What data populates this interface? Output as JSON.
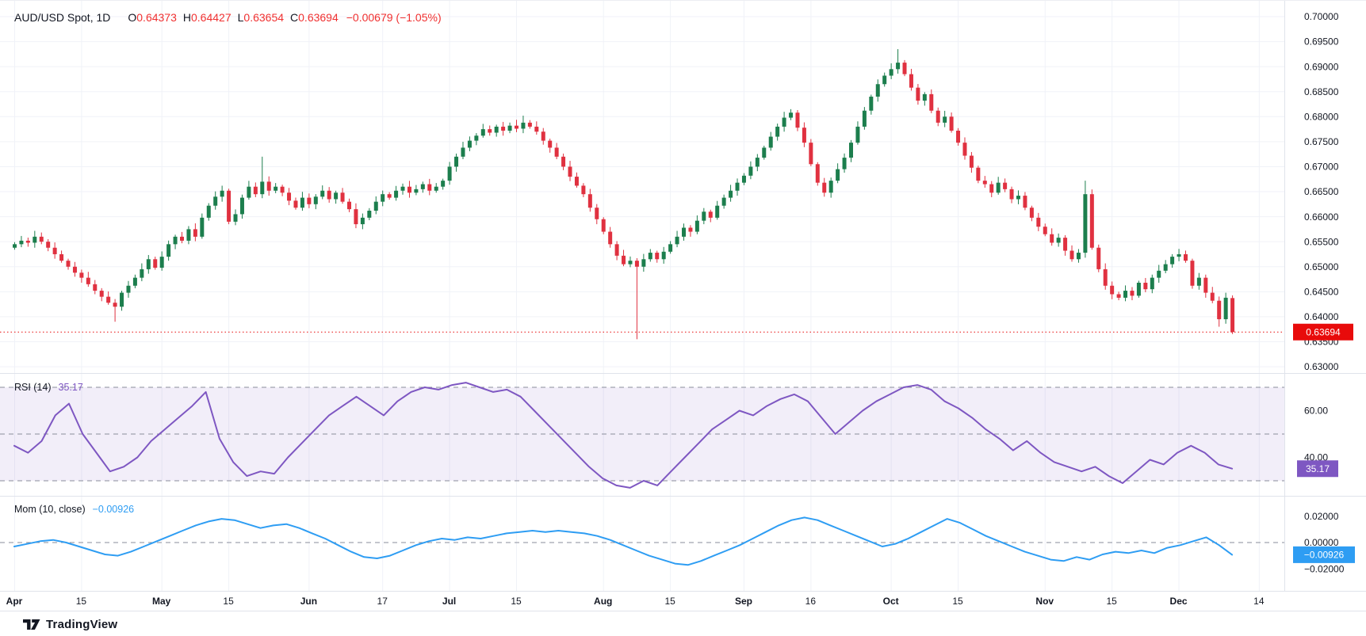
{
  "header": {
    "symbol": "AUD/USD Spot, 1D",
    "ohlc": {
      "o_label": "O",
      "o": "0.64373",
      "h_label": "H",
      "h": "0.64427",
      "l_label": "L",
      "l": "0.63654",
      "c_label": "C",
      "c": "0.63694"
    },
    "change": "−0.00679 (−1.05%)"
  },
  "indicators": {
    "rsi": {
      "label": "RSI (14)",
      "value": "35.17"
    },
    "mom": {
      "label": "Mom (10, close)",
      "value": "−0.00926"
    }
  },
  "footer": {
    "brand": "TradingView"
  },
  "colors": {
    "up": "#1c7e4d",
    "down": "#e03140",
    "last": "#e80b0b",
    "rsi": "#7e57c2",
    "mom": "#2e9df3",
    "grid": "#f0f2f8",
    "dash": "#8a8e9b",
    "border": "#e0e3eb",
    "text": "#131722",
    "band": "rgba(126,87,194,0.10)"
  },
  "chart_data": {
    "type": "candlestick",
    "title": "AUD/USD Spot, 1D",
    "legend_position": "top-left",
    "grid": true,
    "price_axis": {
      "min": 0.63,
      "max": 0.7,
      "step": 0.005,
      "decimals": 5
    },
    "last_price": 0.63694,
    "last_price_label": "0.63694",
    "time_ticks": [
      {
        "label": "Apr",
        "day": 0,
        "month": true
      },
      {
        "label": "15",
        "day": 10,
        "month": false
      },
      {
        "label": "May",
        "day": 22,
        "month": true
      },
      {
        "label": "15",
        "day": 32,
        "month": false
      },
      {
        "label": "Jun",
        "day": 44,
        "month": true
      },
      {
        "label": "17",
        "day": 55,
        "month": false
      },
      {
        "label": "Jul",
        "day": 65,
        "month": true
      },
      {
        "label": "15",
        "day": 75,
        "month": false
      },
      {
        "label": "Aug",
        "day": 88,
        "month": true
      },
      {
        "label": "15",
        "day": 98,
        "month": false
      },
      {
        "label": "Sep",
        "day": 109,
        "month": true
      },
      {
        "label": "16",
        "day": 119,
        "month": false
      },
      {
        "label": "Oct",
        "day": 131,
        "month": true
      },
      {
        "label": "15",
        "day": 141,
        "month": false
      },
      {
        "label": "Nov",
        "day": 154,
        "month": true
      },
      {
        "label": "15",
        "day": 164,
        "month": false
      },
      {
        "label": "Dec",
        "day": 174,
        "month": true
      },
      {
        "label": "14",
        "day": 186,
        "month": false
      }
    ],
    "candles": {
      "first_open": 0.6538,
      "closes": [
        0.6545,
        0.6552,
        0.6548,
        0.656,
        0.655,
        0.6538,
        0.6525,
        0.6512,
        0.65,
        0.6488,
        0.6478,
        0.6465,
        0.6452,
        0.644,
        0.6428,
        0.642,
        0.6448,
        0.6462,
        0.6478,
        0.6495,
        0.6515,
        0.6498,
        0.652,
        0.6545,
        0.656,
        0.6552,
        0.6575,
        0.656,
        0.6598,
        0.6622,
        0.664,
        0.6652,
        0.659,
        0.6605,
        0.6638,
        0.666,
        0.6645,
        0.667,
        0.6652,
        0.666,
        0.6648,
        0.6632,
        0.6618,
        0.6638,
        0.6625,
        0.664,
        0.6652,
        0.6635,
        0.6648,
        0.663,
        0.6615,
        0.6585,
        0.6598,
        0.6612,
        0.663,
        0.6645,
        0.6638,
        0.6652,
        0.666,
        0.6648,
        0.6655,
        0.6665,
        0.6652,
        0.666,
        0.6672,
        0.67,
        0.672,
        0.6738,
        0.6752,
        0.6762,
        0.6775,
        0.6768,
        0.678,
        0.6772,
        0.6782,
        0.6776,
        0.6788,
        0.678,
        0.677,
        0.6752,
        0.6738,
        0.672,
        0.67,
        0.668,
        0.6662,
        0.6645,
        0.6618,
        0.6595,
        0.657,
        0.6545,
        0.6522,
        0.6505,
        0.6512,
        0.65,
        0.6515,
        0.6528,
        0.6515,
        0.653,
        0.6545,
        0.656,
        0.6578,
        0.657,
        0.6592,
        0.661,
        0.6598,
        0.6622,
        0.6638,
        0.6652,
        0.6668,
        0.6682,
        0.67,
        0.6718,
        0.6738,
        0.676,
        0.678,
        0.6798,
        0.6808,
        0.6778,
        0.6748,
        0.6705,
        0.6668,
        0.6648,
        0.6672,
        0.6695,
        0.6718,
        0.6748,
        0.678,
        0.6812,
        0.684,
        0.6865,
        0.6882,
        0.6895,
        0.6908,
        0.6885,
        0.6858,
        0.6832,
        0.6845,
        0.6812,
        0.6788,
        0.68,
        0.6772,
        0.6748,
        0.6722,
        0.6698,
        0.6672,
        0.6665,
        0.6648,
        0.6668,
        0.6655,
        0.6635,
        0.6642,
        0.6618,
        0.6598,
        0.658,
        0.6565,
        0.6548,
        0.6558,
        0.6532,
        0.6515,
        0.6528,
        0.6645,
        0.6538,
        0.6495,
        0.6462,
        0.6445,
        0.6438,
        0.6452,
        0.6442,
        0.6468,
        0.6455,
        0.6478,
        0.6492,
        0.6505,
        0.652,
        0.6525,
        0.6512,
        0.6462,
        0.6478,
        0.6448,
        0.6432,
        0.6395,
        0.6438,
        0.63694
      ],
      "overrides": {
        "15": {
          "low": 0.639
        },
        "31": {
          "high": 0.6662
        },
        "37": {
          "high": 0.672
        },
        "76": {
          "high": 0.6802
        },
        "93": {
          "low": 0.6355
        },
        "116": {
          "high": 0.6815
        },
        "132": {
          "high": 0.6935
        },
        "160": {
          "high": 0.6672,
          "low": 0.6518
        },
        "180": {
          "low": 0.638
        },
        "181": {
          "high": 0.6448
        },
        "182": {
          "open": 0.64373,
          "high": 0.64427,
          "low": 0.63654
        }
      }
    },
    "rsi": {
      "period": 14,
      "levels": [
        70,
        50,
        30
      ],
      "axis_labels": [
        {
          "value": 60,
          "text": "60.00"
        },
        {
          "value": 40,
          "text": "40.00"
        }
      ],
      "last": 35.17,
      "values": [
        45,
        42,
        47,
        58,
        63,
        50,
        42,
        34,
        36,
        40,
        47,
        52,
        57,
        62,
        68,
        48,
        38,
        32,
        34,
        33,
        40,
        46,
        52,
        58,
        62,
        66,
        62,
        58,
        64,
        68,
        70,
        69,
        71,
        72,
        70,
        68,
        69,
        66,
        60,
        54,
        48,
        42,
        36,
        31,
        28,
        27,
        30,
        28,
        34,
        40,
        46,
        52,
        56,
        60,
        58,
        62,
        65,
        67,
        64,
        57,
        50,
        55,
        60,
        64,
        67,
        70,
        71,
        69,
        64,
        61,
        57,
        52,
        48,
        43,
        47,
        42,
        38,
        36,
        34,
        36,
        32,
        29,
        34,
        39,
        37,
        42,
        45,
        42,
        37,
        35.17
      ]
    },
    "mom": {
      "period": 10,
      "source": "close",
      "unit": 0.001,
      "levels": [
        0.02,
        0,
        -0.02
      ],
      "axis_labels": [
        {
          "value": 0.02,
          "text": "0.02000"
        },
        {
          "value": 0,
          "text": "0.00000"
        },
        {
          "value": -0.02,
          "text": "−0.02000"
        }
      ],
      "last": -0.00926,
      "values": [
        -3,
        -1,
        1,
        2,
        0,
        -3,
        -6,
        -9,
        -10,
        -7,
        -3,
        1,
        5,
        9,
        13,
        16,
        18,
        17,
        14,
        11,
        13,
        14,
        11,
        7,
        3,
        -2,
        -7,
        -11,
        -12,
        -10,
        -6,
        -2,
        1,
        3,
        2,
        4,
        3,
        5,
        7,
        8,
        9,
        8,
        9,
        8,
        7,
        5,
        2,
        -2,
        -6,
        -10,
        -13,
        -16,
        -17,
        -14,
        -10,
        -6,
        -2,
        3,
        8,
        13,
        17,
        19,
        17,
        13,
        9,
        5,
        1,
        -3,
        -1,
        3,
        8,
        13,
        18,
        15,
        10,
        5,
        1,
        -3,
        -7,
        -10,
        -13,
        -14,
        -11,
        -13,
        -9,
        -7,
        -8,
        -6,
        -8,
        -4,
        -2,
        1,
        4,
        -2,
        -9.26
      ]
    }
  }
}
